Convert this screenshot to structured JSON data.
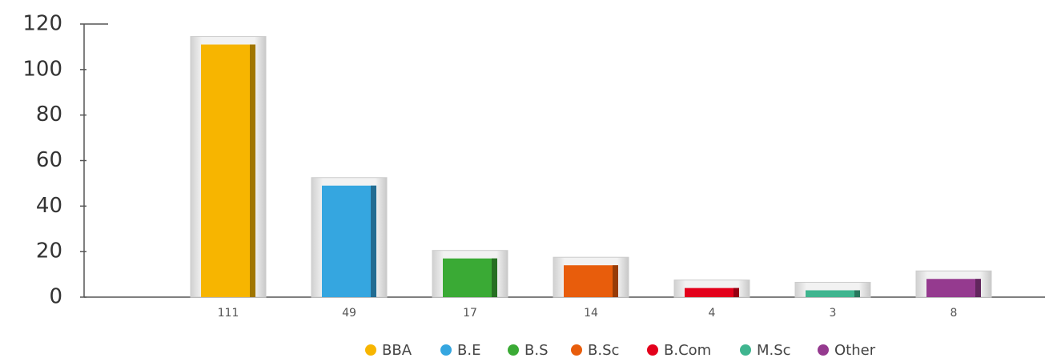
{
  "chart_data": {
    "type": "bar",
    "categories": [
      "BBA",
      "B.E",
      "B.S",
      "B.Sc",
      "B.Com",
      "M.Sc",
      "Other"
    ],
    "values": [
      111,
      49,
      17,
      14,
      4,
      3,
      8
    ],
    "colors": [
      "#f7b500",
      "#35a6e0",
      "#3aaa35",
      "#e85d0c",
      "#e3001b",
      "#3fb58f",
      "#953a8f"
    ],
    "ylim": [
      0,
      120
    ],
    "yticks": [
      0,
      20,
      40,
      60,
      80,
      100,
      120
    ],
    "legend": "bottom"
  }
}
